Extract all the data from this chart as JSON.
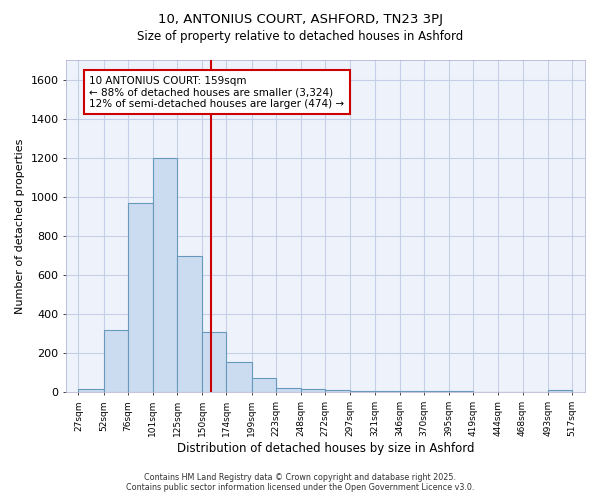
{
  "title1": "10, ANTONIUS COURT, ASHFORD, TN23 3PJ",
  "title2": "Size of property relative to detached houses in Ashford",
  "xlabel": "Distribution of detached houses by size in Ashford",
  "ylabel": "Number of detached properties",
  "bar_left_edges": [
    27,
    52,
    76,
    101,
    125,
    150,
    174,
    199,
    223,
    248,
    272,
    297,
    321,
    346,
    370,
    395,
    419,
    444,
    468,
    493
  ],
  "bar_widths": [
    25,
    24,
    25,
    24,
    25,
    24,
    25,
    24,
    25,
    24,
    25,
    24,
    25,
    24,
    25,
    24,
    25,
    24,
    25,
    24
  ],
  "bar_heights": [
    20,
    320,
    970,
    1200,
    700,
    310,
    155,
    75,
    25,
    15,
    10,
    5,
    5,
    5,
    5,
    5,
    0,
    0,
    0,
    10
  ],
  "bar_color": "#ccdcf0",
  "bar_edgecolor": "#6699bb",
  "vline_x": 159,
  "vline_color": "#cc0000",
  "annotation_line1": "10 ANTONIUS COURT: 159sqm",
  "annotation_line2": "← 88% of detached houses are smaller (3,324)",
  "annotation_line3": "12% of semi-detached houses are larger (474) →",
  "annotation_box_edgecolor": "#cc0000",
  "annotation_box_facecolor": "#ffffff",
  "xtick_labels": [
    "27sqm",
    "52sqm",
    "76sqm",
    "101sqm",
    "125sqm",
    "150sqm",
    "174sqm",
    "199sqm",
    "223sqm",
    "248sqm",
    "272sqm",
    "297sqm",
    "321sqm",
    "346sqm",
    "370sqm",
    "395sqm",
    "419sqm",
    "444sqm",
    "468sqm",
    "493sqm",
    "517sqm"
  ],
  "xtick_positions": [
    27,
    52,
    76,
    101,
    125,
    150,
    174,
    199,
    223,
    248,
    272,
    297,
    321,
    346,
    370,
    395,
    419,
    444,
    468,
    493,
    517
  ],
  "ytick_positions": [
    0,
    200,
    400,
    600,
    800,
    1000,
    1200,
    1400,
    1600
  ],
  "ylim": [
    0,
    1700
  ],
  "xlim": [
    15,
    530
  ],
  "footer1": "Contains HM Land Registry data © Crown copyright and database right 2025.",
  "footer2": "Contains public sector information licensed under the Open Government Licence v3.0.",
  "bg_color": "#eef2fb",
  "grid_color": "#c5cfe8"
}
